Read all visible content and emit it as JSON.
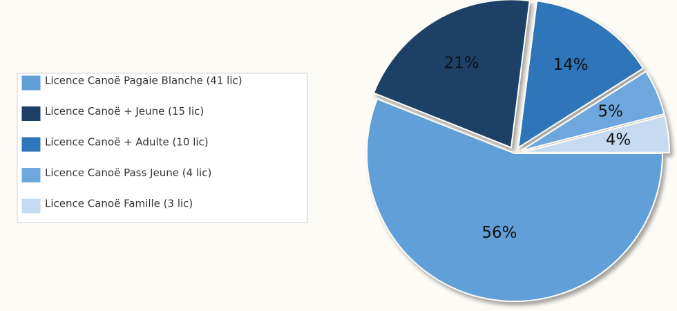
{
  "chart_data": {
    "type": "pie",
    "categories": [
      "Licence Canoë Pagaie Blanche (41 lic)",
      "Licence Canoë + Jeune (15 lic)",
      "Licence Canoë + Adulte (10 lic)",
      "Licence Canoë Pass Jeune (4 lic)",
      "Licence Canoë Famille (3 lic)"
    ],
    "values": [
      56,
      21,
      14,
      5,
      4
    ],
    "value_labels": [
      "56%",
      "21%",
      "14%",
      "5%",
      "4%"
    ],
    "colors": [
      "#619fd7",
      "#1d3f66",
      "#2f75ba",
      "#6ea7dd",
      "#c6dbf1"
    ],
    "legend": "left"
  }
}
